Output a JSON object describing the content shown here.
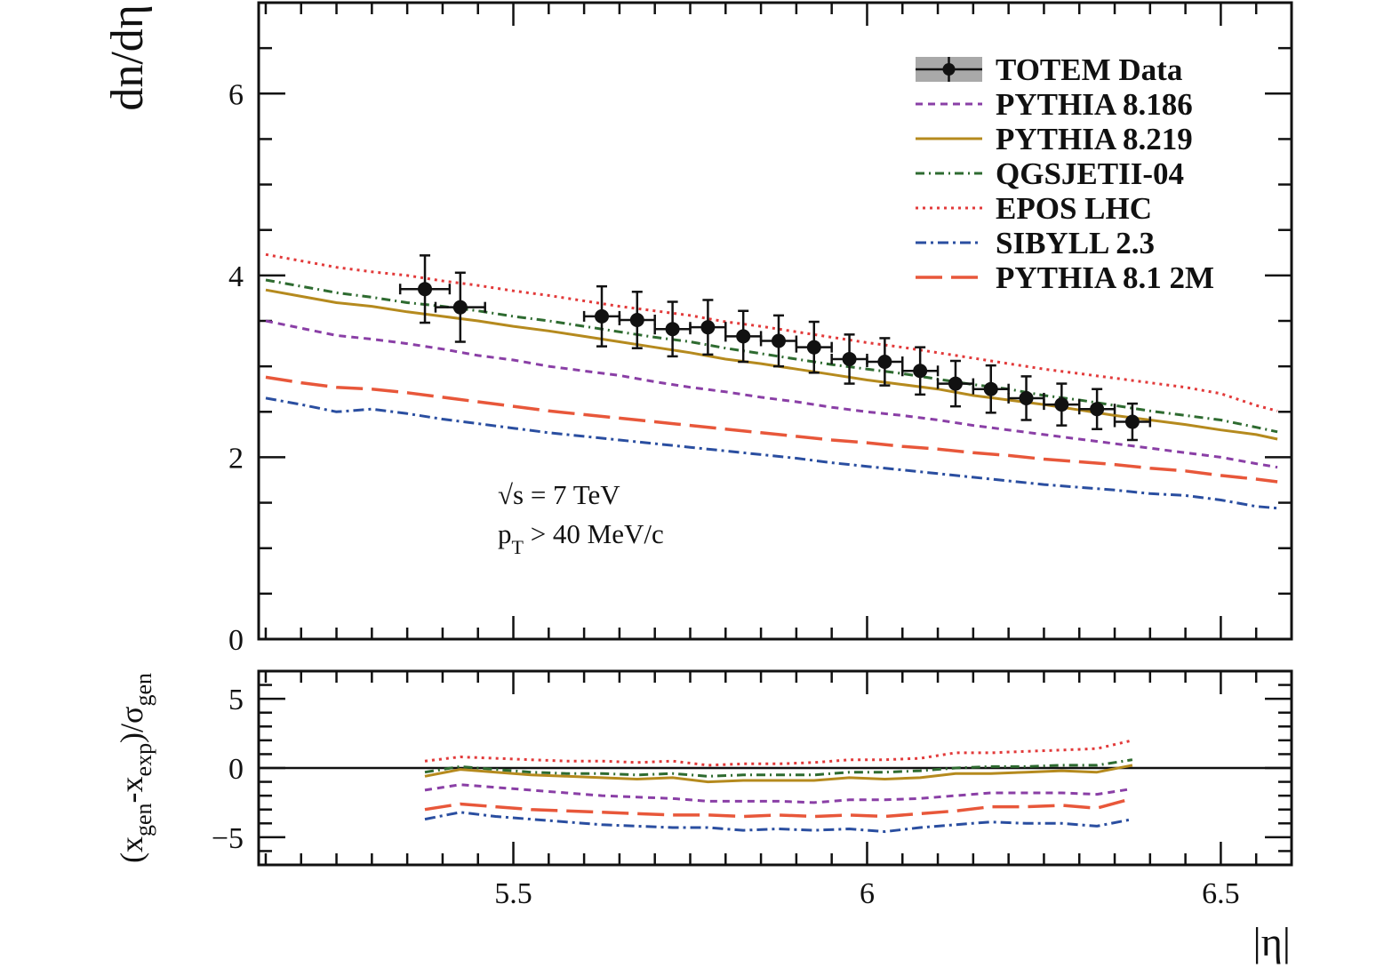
{
  "chart_data": [
    {
      "type": "line",
      "panel": "main",
      "ylabel": "dn/dη",
      "xlim": [
        5.14,
        6.6
      ],
      "ylim": [
        0,
        7
      ],
      "y_ticks": [
        0,
        2,
        4,
        6
      ],
      "y_tick_labels": [
        "0",
        "2",
        "4",
        "6"
      ],
      "legend_position": "top-right",
      "annotations": [
        {
          "text": "√s = 7 TeV"
        },
        {
          "text": "pT > 40 MeV/c",
          "main": "p",
          "sub": "T",
          "rest": " > 40 MeV/c"
        }
      ],
      "data_series": {
        "name": "TOTEM Data",
        "color": "#111111",
        "points": [
          {
            "x": 5.375,
            "y": 3.85,
            "xerr": 0.035,
            "yerr": 0.37
          },
          {
            "x": 5.425,
            "y": 3.65,
            "xerr": 0.035,
            "yerr": 0.38
          },
          {
            "x": 5.625,
            "y": 3.55,
            "xerr": 0.025,
            "yerr": 0.33
          },
          {
            "x": 5.675,
            "y": 3.51,
            "xerr": 0.025,
            "yerr": 0.31
          },
          {
            "x": 5.725,
            "y": 3.41,
            "xerr": 0.025,
            "yerr": 0.3
          },
          {
            "x": 5.775,
            "y": 3.43,
            "xerr": 0.025,
            "yerr": 0.3
          },
          {
            "x": 5.825,
            "y": 3.33,
            "xerr": 0.025,
            "yerr": 0.28
          },
          {
            "x": 5.875,
            "y": 3.28,
            "xerr": 0.025,
            "yerr": 0.28
          },
          {
            "x": 5.925,
            "y": 3.21,
            "xerr": 0.025,
            "yerr": 0.28
          },
          {
            "x": 5.975,
            "y": 3.08,
            "xerr": 0.025,
            "yerr": 0.27
          },
          {
            "x": 6.025,
            "y": 3.05,
            "xerr": 0.025,
            "yerr": 0.26
          },
          {
            "x": 6.075,
            "y": 2.95,
            "xerr": 0.025,
            "yerr": 0.26
          },
          {
            "x": 6.125,
            "y": 2.81,
            "xerr": 0.025,
            "yerr": 0.25
          },
          {
            "x": 6.175,
            "y": 2.75,
            "xerr": 0.025,
            "yerr": 0.26
          },
          {
            "x": 6.225,
            "y": 2.65,
            "xerr": 0.025,
            "yerr": 0.24
          },
          {
            "x": 6.275,
            "y": 2.58,
            "xerr": 0.025,
            "yerr": 0.23
          },
          {
            "x": 6.325,
            "y": 2.53,
            "xerr": 0.025,
            "yerr": 0.22
          },
          {
            "x": 6.375,
            "y": 2.39,
            "xerr": 0.025,
            "yerr": 0.2
          }
        ]
      },
      "x": [
        5.15,
        5.2,
        5.25,
        5.3,
        5.35,
        5.4,
        5.45,
        5.5,
        5.55,
        5.6,
        5.65,
        5.7,
        5.75,
        5.8,
        5.85,
        5.9,
        5.95,
        6.0,
        6.05,
        6.1,
        6.15,
        6.2,
        6.25,
        6.3,
        6.35,
        6.4,
        6.45,
        6.5,
        6.55,
        6.58
      ],
      "series": [
        {
          "name": "PYTHIA 8.186",
          "color": "#8a3fa6",
          "dash": "8,6",
          "width": 3,
          "values": [
            3.5,
            3.42,
            3.34,
            3.3,
            3.25,
            3.19,
            3.12,
            3.07,
            3.0,
            2.95,
            2.9,
            2.83,
            2.77,
            2.72,
            2.66,
            2.61,
            2.55,
            2.5,
            2.46,
            2.41,
            2.35,
            2.3,
            2.25,
            2.2,
            2.15,
            2.1,
            2.05,
            2.0,
            1.93,
            1.89
          ]
        },
        {
          "name": "PYTHIA 8.219",
          "color": "#b58a1e",
          "dash": "",
          "width": 3,
          "values": [
            3.84,
            3.77,
            3.7,
            3.66,
            3.6,
            3.55,
            3.5,
            3.44,
            3.39,
            3.33,
            3.27,
            3.21,
            3.15,
            3.08,
            3.03,
            2.97,
            2.91,
            2.85,
            2.8,
            2.75,
            2.68,
            2.63,
            2.58,
            2.52,
            2.46,
            2.41,
            2.36,
            2.3,
            2.25,
            2.2
          ]
        },
        {
          "name": "QGSJETII-04",
          "color": "#2e6b30",
          "dash": "10,5,2,5",
          "width": 3,
          "values": [
            3.95,
            3.88,
            3.81,
            3.76,
            3.7,
            3.66,
            3.61,
            3.55,
            3.5,
            3.44,
            3.38,
            3.32,
            3.27,
            3.2,
            3.14,
            3.08,
            3.02,
            2.97,
            2.92,
            2.86,
            2.8,
            2.75,
            2.68,
            2.63,
            2.57,
            2.51,
            2.46,
            2.41,
            2.33,
            2.28
          ]
        },
        {
          "name": "EPOS LHC",
          "color": "#e23a3a",
          "dash": "3,5",
          "width": 3,
          "values": [
            4.23,
            4.16,
            4.09,
            4.04,
            4.0,
            3.94,
            3.89,
            3.83,
            3.78,
            3.72,
            3.66,
            3.61,
            3.56,
            3.49,
            3.44,
            3.38,
            3.32,
            3.26,
            3.21,
            3.15,
            3.09,
            3.03,
            2.97,
            2.92,
            2.87,
            2.82,
            2.77,
            2.7,
            2.57,
            2.51
          ]
        },
        {
          "name": "SIBYLL 2.3",
          "color": "#2a4ea0",
          "dash": "12,5,3,5",
          "width": 3,
          "values": [
            2.65,
            2.58,
            2.5,
            2.53,
            2.48,
            2.42,
            2.37,
            2.32,
            2.27,
            2.23,
            2.19,
            2.15,
            2.11,
            2.07,
            2.03,
            1.99,
            1.94,
            1.9,
            1.86,
            1.82,
            1.78,
            1.74,
            1.7,
            1.67,
            1.64,
            1.6,
            1.58,
            1.53,
            1.46,
            1.44
          ]
        },
        {
          "name": "PYTHIA 8.1 2M",
          "color": "#e8573a",
          "dash": "30,10",
          "width": 3.5,
          "values": [
            2.88,
            2.82,
            2.77,
            2.75,
            2.71,
            2.66,
            2.61,
            2.56,
            2.51,
            2.47,
            2.43,
            2.39,
            2.35,
            2.31,
            2.27,
            2.23,
            2.19,
            2.16,
            2.12,
            2.09,
            2.05,
            2.02,
            1.98,
            1.95,
            1.92,
            1.88,
            1.85,
            1.8,
            1.76,
            1.73
          ]
        }
      ]
    },
    {
      "type": "line",
      "panel": "ratio",
      "ylabel": "(xgen-xexp)/σgen",
      "ylabel_parts": [
        {
          "text": "(x",
          "sub": false
        },
        {
          "text": "gen",
          "sub": true
        },
        {
          "text": "-x",
          "sub": false
        },
        {
          "text": "exp",
          "sub": true
        },
        {
          "text": ")/σ",
          "sub": false
        },
        {
          "text": "gen",
          "sub": true
        }
      ],
      "xlabel": "|η|",
      "xlim": [
        5.14,
        6.6
      ],
      "ylim": [
        -7,
        7
      ],
      "y_ticks": [
        -5,
        0,
        5
      ],
      "y_tick_labels": [
        "−5",
        "0",
        "5"
      ],
      "x_ticks": [
        5.5,
        6.0,
        6.5
      ],
      "x_tick_labels": [
        "5.5",
        "6",
        "6.5"
      ],
      "zero_line": true,
      "x": [
        5.375,
        5.425,
        5.475,
        5.525,
        5.575,
        5.625,
        5.675,
        5.725,
        5.775,
        5.825,
        5.875,
        5.925,
        5.975,
        6.025,
        6.075,
        6.125,
        6.175,
        6.225,
        6.275,
        6.325,
        6.375
      ],
      "series": [
        {
          "name": "PYTHIA 8.186",
          "color": "#8a3fa6",
          "dash": "8,6",
          "width": 3,
          "values": [
            -1.6,
            -1.2,
            -1.4,
            -1.6,
            -1.8,
            -2.0,
            -2.1,
            -2.2,
            -2.4,
            -2.4,
            -2.4,
            -2.5,
            -2.3,
            -2.3,
            -2.2,
            -2.0,
            -1.8,
            -1.8,
            -1.8,
            -1.9,
            -1.5
          ]
        },
        {
          "name": "PYTHIA 8.219",
          "color": "#b58a1e",
          "dash": "",
          "width": 3,
          "values": [
            -0.6,
            -0.1,
            -0.3,
            -0.5,
            -0.6,
            -0.7,
            -0.8,
            -0.7,
            -1.0,
            -0.9,
            -0.9,
            -0.9,
            -0.7,
            -0.8,
            -0.7,
            -0.4,
            -0.4,
            -0.3,
            -0.2,
            -0.3,
            0.2
          ]
        },
        {
          "name": "QGSJETII-04",
          "color": "#2e6b30",
          "dash": "10,5,2,5",
          "width": 3,
          "values": [
            -0.3,
            0.1,
            -0.1,
            -0.3,
            -0.4,
            -0.4,
            -0.5,
            -0.4,
            -0.6,
            -0.5,
            -0.5,
            -0.5,
            -0.3,
            -0.3,
            -0.2,
            0.0,
            0.1,
            0.1,
            0.2,
            0.2,
            0.6
          ]
        },
        {
          "name": "EPOS LHC",
          "color": "#e23a3a",
          "dash": "3,5",
          "width": 3,
          "values": [
            0.5,
            0.8,
            0.7,
            0.6,
            0.5,
            0.5,
            0.4,
            0.5,
            0.2,
            0.3,
            0.3,
            0.4,
            0.6,
            0.6,
            0.7,
            1.1,
            1.1,
            1.2,
            1.3,
            1.4,
            2.0
          ]
        },
        {
          "name": "SIBYLL 2.3",
          "color": "#2a4ea0",
          "dash": "12,5,3,5",
          "width": 3,
          "values": [
            -3.7,
            -3.2,
            -3.5,
            -3.7,
            -3.9,
            -4.1,
            -4.2,
            -4.3,
            -4.3,
            -4.5,
            -4.4,
            -4.5,
            -4.4,
            -4.6,
            -4.3,
            -4.1,
            -3.9,
            -4.0,
            -4.0,
            -4.2,
            -3.7
          ]
        },
        {
          "name": "PYTHIA 8.1 2M",
          "color": "#e8573a",
          "dash": "30,10",
          "width": 3.5,
          "values": [
            -3.0,
            -2.6,
            -2.8,
            -3.0,
            -3.1,
            -3.2,
            -3.3,
            -3.4,
            -3.4,
            -3.5,
            -3.4,
            -3.5,
            -3.4,
            -3.5,
            -3.3,
            -3.1,
            -2.8,
            -2.8,
            -2.7,
            -2.9,
            -2.2
          ]
        }
      ]
    }
  ]
}
